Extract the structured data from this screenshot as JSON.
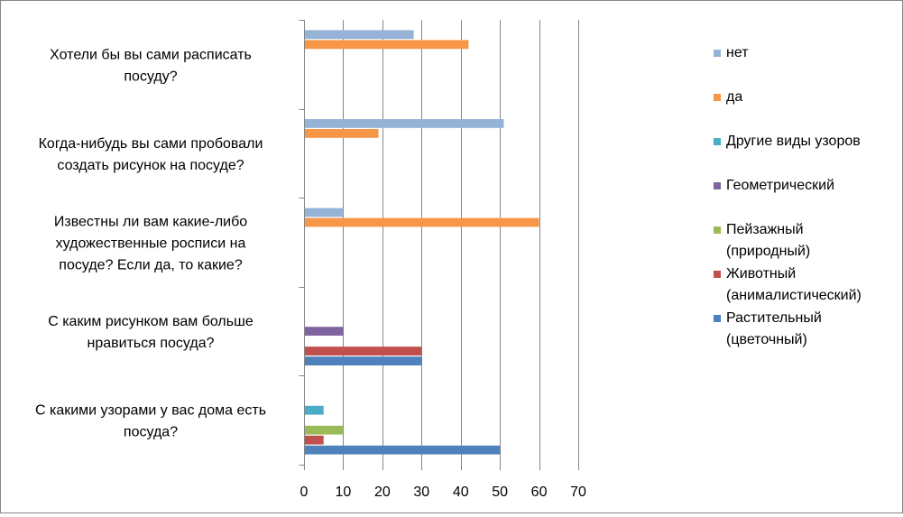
{
  "chart_data": {
    "type": "bar",
    "orientation": "horizontal",
    "categories": [
      "С какими узорами у вас дома есть посуда?",
      "С каким рисунком вам больше нравиться посуда?",
      "Известны ли вам какие-либо художественные росписи на посуде? Если да, то какие?",
      "Когда-нибудь вы сами пробовали создать рисунок на посуде?",
      "Хотели бы вы сами расписать посуду?"
    ],
    "category_lines": [
      [
        "С какими узорами у вас дома есть",
        "посуда?"
      ],
      [
        "С каким рисунком вам больше",
        "нравиться посуда?"
      ],
      [
        "Известны ли вам какие-либо",
        "художественные росписи на",
        "посуде? Если да, то какие?"
      ],
      [
        "Когда-нибудь вы сами пробовали",
        "создать рисунок на посуде?"
      ],
      [
        "Хотели бы вы сами расписать",
        "посуду?"
      ]
    ],
    "series": [
      {
        "name": "Растительный (цветочный)",
        "legend_lines": [
          "Растительный",
          "(цветочный)"
        ],
        "color": "#4F81BD",
        "values": [
          50,
          30,
          null,
          null,
          null
        ]
      },
      {
        "name": "Животный (анималистический)",
        "legend_lines": [
          "Животный",
          "(анималистический)"
        ],
        "color": "#C0504D",
        "values": [
          5,
          30,
          null,
          null,
          null
        ]
      },
      {
        "name": "Пейзажный (природный)",
        "legend_lines": [
          "Пейзажный",
          "(природный)"
        ],
        "color": "#9BBB59",
        "values": [
          10,
          null,
          null,
          null,
          null
        ]
      },
      {
        "name": "Геометрический",
        "legend_lines": [
          "Геометрический"
        ],
        "color": "#8064A2",
        "values": [
          null,
          10,
          null,
          null,
          null
        ]
      },
      {
        "name": "Другие виды узоров",
        "legend_lines": [
          "Другие виды узоров"
        ],
        "color": "#4BACC6",
        "values": [
          5,
          null,
          null,
          null,
          null
        ]
      },
      {
        "name": "да",
        "legend_lines": [
          "да"
        ],
        "color": "#F79646",
        "values": [
          null,
          null,
          60,
          19,
          42
        ]
      },
      {
        "name": "нет",
        "legend_lines": [
          "нет"
        ],
        "color": "#95B3D7",
        "values": [
          null,
          null,
          10,
          51,
          28
        ]
      }
    ],
    "x_ticks": [
      "0",
      "10",
      "20",
      "30",
      "40",
      "50",
      "60",
      "70"
    ],
    "xlim": [
      0,
      70
    ],
    "grid": "vertical",
    "legend_position": "right",
    "title": "",
    "xlabel": "",
    "ylabel": ""
  }
}
